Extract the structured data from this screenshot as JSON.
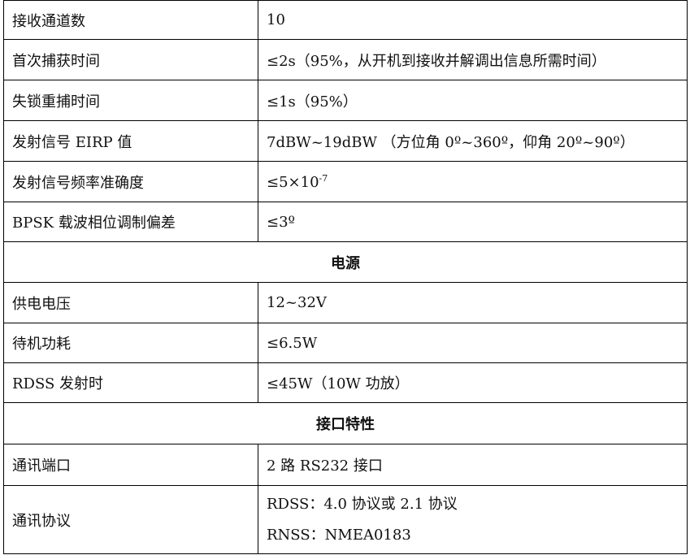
{
  "rows": [
    {
      "label": "接收通道数",
      "value": "10"
    },
    {
      "label": "首次捕获时间",
      "value": "≤2s（95%，从开机到接收并解调出信息所需时间）"
    },
    {
      "label": "失锁重捕时间",
      "value": "≤1s（95%）"
    },
    {
      "label": "发射信号 EIRP 值",
      "value": "7dBW~19dBW （方位角 0º~360º，仰角 20º~90º）"
    },
    {
      "label": "发射信号频率准确度",
      "value": "≤5×10",
      "sup": "-7"
    },
    {
      "label": "BPSK 载波相位调制偏差",
      "value": "≤3º"
    }
  ],
  "section_power": "电源",
  "power_rows": [
    {
      "label": "供电电压",
      "value": "12~32V"
    },
    {
      "label": "待机功耗",
      "value": "≤6.5W"
    },
    {
      "label": "RDSS 发射时",
      "value": "≤45W（10W 功放）"
    }
  ],
  "section_interface": "接口特性",
  "interface_rows": [
    {
      "label": "通讯端口",
      "value": "2 路 RS232 接口"
    },
    {
      "label": "通讯协议",
      "value_lines": [
        "RDSS：4.0 协议或 2.1 协议",
        "RNSS：NMEA0183"
      ]
    }
  ]
}
